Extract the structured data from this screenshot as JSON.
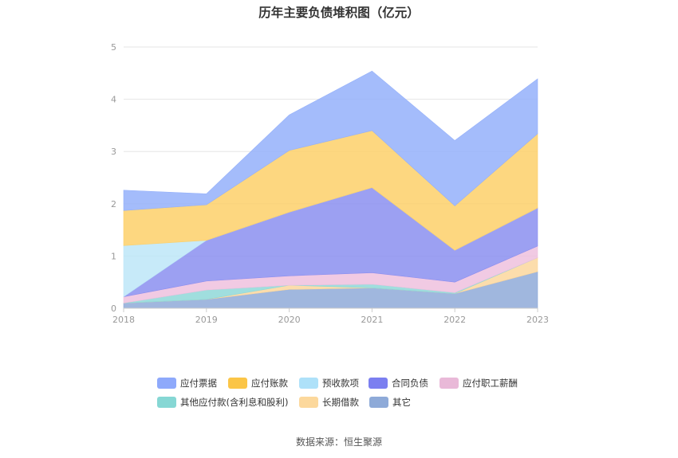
{
  "title": "历年主要负债堆积图（亿元）",
  "source": "数据来源：恒生聚源",
  "chart_data": {
    "type": "area",
    "stacked": true,
    "title": "历年主要负债堆积图（亿元）",
    "xlabel": "",
    "ylabel": "",
    "x": [
      "2018",
      "2019",
      "2020",
      "2021",
      "2022",
      "2023"
    ],
    "ylim": [
      0,
      5
    ],
    "yticks": [
      0,
      1,
      2,
      3,
      4,
      5
    ],
    "grid": true,
    "legend_position": "bottom",
    "series": [
      {
        "name": "其它",
        "color": "#8faad8",
        "values": [
          0.1,
          0.17,
          0.36,
          0.39,
          0.28,
          0.7
        ]
      },
      {
        "name": "长期借款",
        "color": "#fbd79d",
        "values": [
          0.0,
          0.0,
          0.08,
          0.0,
          0.0,
          0.27
        ]
      },
      {
        "name": "其他应付款(含利息和股利)",
        "color": "#8fd8d8",
        "values": [
          0.0,
          0.18,
          0.0,
          0.07,
          0.02,
          0.0
        ]
      },
      {
        "name": "应付职工薪酬",
        "color": "#eec1de",
        "values": [
          0.12,
          0.17,
          0.18,
          0.22,
          0.2,
          0.22
        ]
      },
      {
        "name": "合同负债",
        "color": "#8b8ff0",
        "values": [
          0.0,
          0.78,
          1.22,
          1.63,
          0.61,
          0.73
        ]
      },
      {
        "name": "预收款项",
        "color": "#bde6f8",
        "values": [
          0.98,
          0.0,
          0.0,
          0.0,
          0.0,
          0.0
        ]
      },
      {
        "name": "应付账款",
        "color": "#fdd06a",
        "values": [
          0.67,
          0.68,
          1.18,
          1.09,
          0.85,
          1.42
        ]
      },
      {
        "name": "应付票据",
        "color": "#94b0fa",
        "values": [
          0.39,
          0.21,
          0.68,
          1.14,
          1.25,
          1.05
        ]
      }
    ]
  },
  "legend": [
    {
      "name": "应付票据",
      "color": "#8ea9fb"
    },
    {
      "name": "应付账款",
      "color": "#fbc547"
    },
    {
      "name": "预收款项",
      "color": "#aee1f9"
    },
    {
      "name": "合同负债",
      "color": "#7b7ff0"
    },
    {
      "name": "应付职工薪酬",
      "color": "#e9b9d8"
    },
    {
      "name": "其他应付款(含利息和股利)",
      "color": "#86d7d4"
    },
    {
      "name": "长期借款",
      "color": "#fcd89c"
    },
    {
      "name": "其它",
      "color": "#8eaad8"
    }
  ]
}
